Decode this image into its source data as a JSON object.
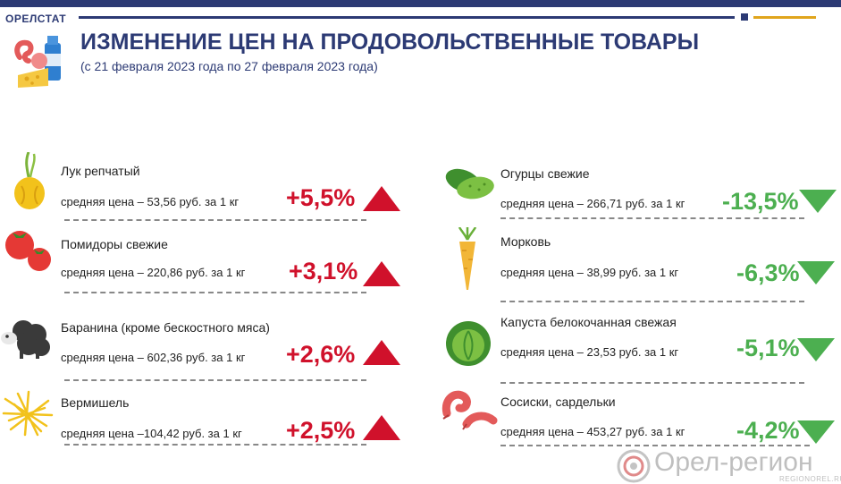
{
  "header": {
    "org": "ОРЕЛСТАТ",
    "title": "ИЗМЕНЕНИЕ ЦЕН НА ПРОДОВОЛЬСТВЕННЫЕ ТОВАРЫ",
    "subtitle": "(с 21 февраля 2023 года по 27 февраля 2023 года)"
  },
  "colors": {
    "up": "#d0112b",
    "down": "#4caf50",
    "navy": "#2c3a74",
    "gold": "#e0a51c"
  },
  "left": [
    {
      "name": "Лук репчатый",
      "price": "средняя цена – 53,56 руб. за 1 кг",
      "change": "+5,5%",
      "icon": "onion-icon",
      "direction": "up"
    },
    {
      "name": "Помидоры свежие",
      "price": "средняя цена – 220,86 руб. за 1 кг",
      "change": "+3,1%",
      "icon": "tomato-icon",
      "direction": "up"
    },
    {
      "name": "Баранина (кроме бескостного мяса)",
      "price": "средняя цена – 602,36 руб. за 1 кг",
      "change": "+2,6%",
      "icon": "sheep-icon",
      "direction": "up"
    },
    {
      "name": "Вермишель",
      "price": "средняя цена –104,42 руб. за 1 кг",
      "change": "+2,5%",
      "icon": "pasta-icon",
      "direction": "up"
    }
  ],
  "right": [
    {
      "name": "Огурцы свежие",
      "price": "средняя цена – 266,71 руб. за 1 кг",
      "change": "-13,5%",
      "icon": "cucumber-icon",
      "direction": "down"
    },
    {
      "name": "Морковь",
      "price": "средняя цена –  38,99 руб. за  1 кг",
      "change": "-6,3%",
      "icon": "carrot-icon",
      "direction": "down"
    },
    {
      "name": "Капуста белокочанная свежая",
      "price": "средняя цена – 23,53 руб. за 1 кг",
      "change": "-5,1%",
      "icon": "cabbage-icon",
      "direction": "down"
    },
    {
      "name": "Сосиски, сардельки",
      "price": "средняя цена – 453,27 руб. за 1 кг",
      "change": "-4,2%",
      "icon": "sausage-icon",
      "direction": "down"
    }
  ],
  "watermark": {
    "text": "Орел-регион",
    "url": "REGIONOREL.RU"
  }
}
